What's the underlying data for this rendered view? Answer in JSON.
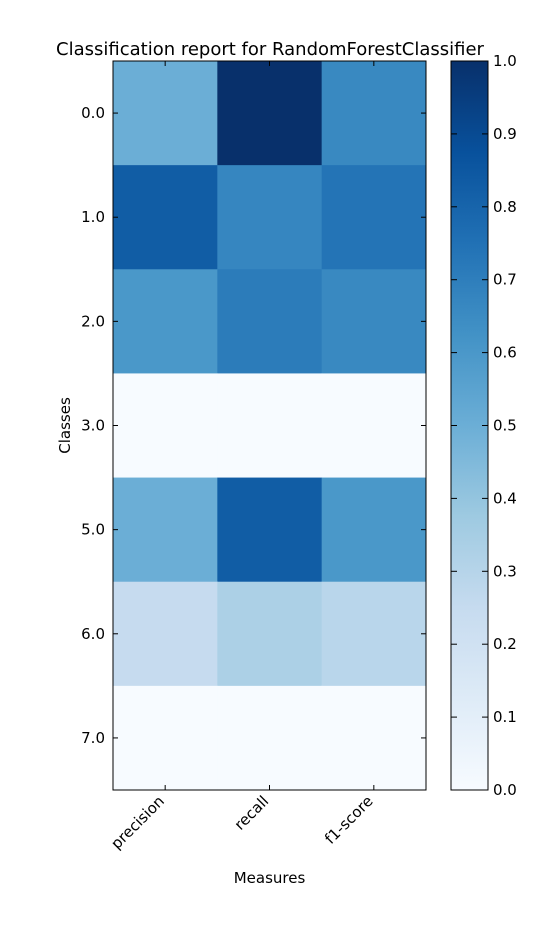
{
  "chart_data": {
    "type": "heatmap",
    "title": "Classification report for RandomForestClassifier",
    "xlabel": "Measures",
    "ylabel": "Classes",
    "x_categories": [
      "precision",
      "recall",
      "f1-score"
    ],
    "y_categories": [
      "0.0",
      "1.0",
      "2.0",
      "3.0",
      "5.0",
      "6.0",
      "7.0"
    ],
    "values": [
      [
        0.5,
        1.0,
        0.66
      ],
      [
        0.83,
        0.67,
        0.74
      ],
      [
        0.6,
        0.71,
        0.66
      ],
      [
        0.0,
        0.0,
        0.0
      ],
      [
        0.5,
        0.83,
        0.6
      ],
      [
        0.25,
        0.33,
        0.29
      ],
      [
        0.0,
        0.0,
        0.0
      ]
    ],
    "colorbar": {
      "colormap": "Blues",
      "range": [
        0.0,
        1.0
      ],
      "ticks": [
        "0.0",
        "0.1",
        "0.2",
        "0.3",
        "0.4",
        "0.5",
        "0.6",
        "0.7",
        "0.8",
        "0.9",
        "1.0"
      ]
    }
  }
}
